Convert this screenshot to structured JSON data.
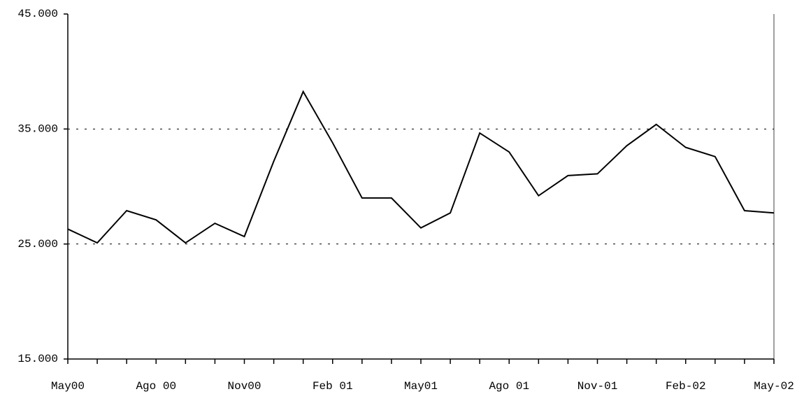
{
  "chart_data": {
    "type": "line",
    "categories": [
      "May00",
      null,
      null,
      "Ago 00",
      null,
      null,
      "Nov00",
      null,
      null,
      "Feb 01",
      null,
      null,
      "May01",
      null,
      null,
      "Ago 01",
      null,
      null,
      "Nov-01",
      null,
      null,
      "Feb-02",
      null,
      null,
      "May-02"
    ],
    "series": [
      {
        "color": "#000000",
        "values": [
          26300,
          25100,
          27900,
          27100,
          25100,
          26800,
          25650,
          32200,
          38250,
          33800,
          29000,
          29000,
          26400,
          27700,
          34650,
          33000,
          29200,
          30950,
          31100,
          33550,
          35400,
          33400,
          32600,
          27900,
          27700
        ]
      }
    ],
    "ylim": [
      15000,
      45000
    ],
    "yticks": [
      {
        "value": 15000,
        "label": "15.000"
      },
      {
        "value": 25000,
        "label": "25.000"
      },
      {
        "value": 35000,
        "label": "35.000"
      },
      {
        "value": 45000,
        "label": "45.000"
      }
    ],
    "grid": true
  }
}
